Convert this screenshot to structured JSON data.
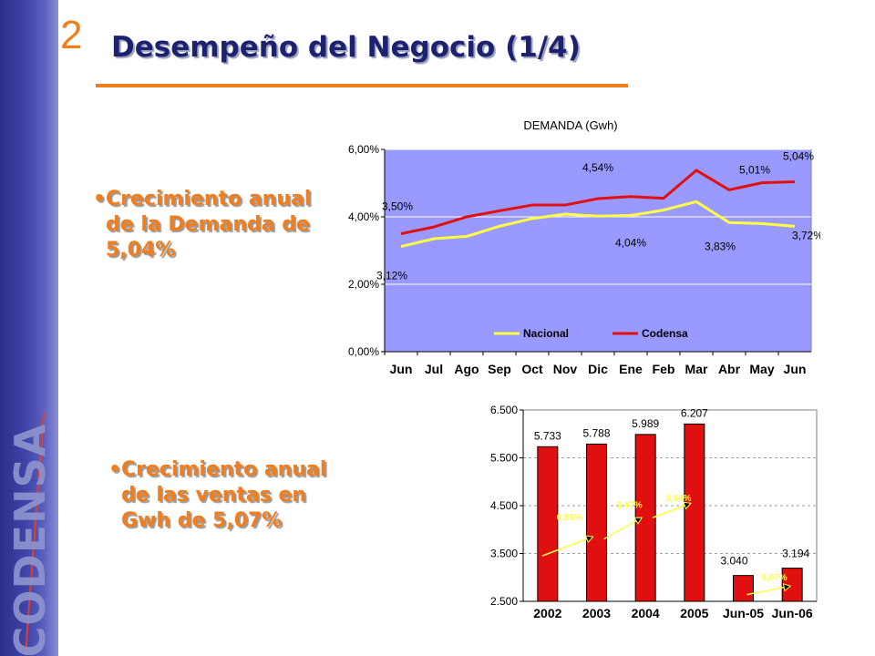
{
  "slide": {
    "section_number": "2",
    "title": "Desempeño del Negocio (1/4)",
    "brand": "CODENSA",
    "colors": {
      "accent": "#f07d1e",
      "title": "#1c2270",
      "sidebar": "#3f44a8"
    }
  },
  "bullets": [
    {
      "marker": "•",
      "lines": [
        "Crecimiento anual",
        "de la Demanda de",
        "5,04%"
      ]
    },
    {
      "marker": "•",
      "lines": [
        "Crecimiento anual",
        "de las ventas en",
        "Gwh de 5,07%"
      ]
    }
  ],
  "chart_data": [
    {
      "type": "line",
      "title": "DEMANDA (Gwh)",
      "categories": [
        "Jun",
        "Jul",
        "Ago",
        "Sep",
        "Oct",
        "Nov",
        "Dic",
        "Ene",
        "Feb",
        "Mar",
        "Abr",
        "May",
        "Jun"
      ],
      "ylim": [
        0,
        6
      ],
      "yticks": [
        "0,00%",
        "2,00%",
        "4,00%",
        "6,00%"
      ],
      "grid": true,
      "legend_position": "bottom",
      "series": [
        {
          "name": "Nacional",
          "color": "#ffff44",
          "values": [
            3.12,
            3.35,
            3.42,
            3.72,
            3.95,
            4.08,
            4.02,
            4.04,
            4.2,
            4.45,
            3.83,
            3.8,
            3.72
          ]
        },
        {
          "name": "Codensa",
          "color": "#e01010",
          "values": [
            3.5,
            3.7,
            4.0,
            4.18,
            4.35,
            4.35,
            4.54,
            4.6,
            4.55,
            5.38,
            4.8,
            5.01,
            5.04
          ]
        }
      ],
      "annotations": [
        {
          "text": "3,50%",
          "series": 1,
          "index": 0
        },
        {
          "text": "3,12%",
          "series": 0,
          "index": 0
        },
        {
          "text": "4,54%",
          "series": 1,
          "index": 6
        },
        {
          "text": "4,04%",
          "series": 0,
          "index": 7
        },
        {
          "text": "5,01%",
          "series": 1,
          "index": 11
        },
        {
          "text": "5,04%",
          "series": 1,
          "index": 12
        },
        {
          "text": "3,83%",
          "series": 0,
          "index": 10
        },
        {
          "text": "3,72%",
          "series": 0,
          "index": 12
        }
      ]
    },
    {
      "type": "bar",
      "title": "",
      "categories": [
        "2002",
        "2003",
        "2004",
        "2005",
        "Jun-05",
        "Jun-06"
      ],
      "values": [
        5733,
        5788,
        5989,
        6207,
        3040,
        3194
      ],
      "value_labels": [
        "5.733",
        "5.788",
        "5.989",
        "6.207",
        "3.040",
        "3.194"
      ],
      "ylim": [
        2500,
        6500
      ],
      "yticks": [
        "2.500",
        "3.500",
        "4.500",
        "5.500",
        "6.500"
      ],
      "bar_color": "#e01010",
      "grid": true,
      "growth_arrows": [
        {
          "text": "0,96%",
          "from": 0,
          "to": 1
        },
        {
          "text": "3,47%",
          "from": 1,
          "to": 2
        },
        {
          "text": "3,64%",
          "from": 2,
          "to": 3
        },
        {
          "text": "5,07%",
          "from": 4,
          "to": 5
        }
      ],
      "arrow_color": "#ffff44"
    }
  ]
}
